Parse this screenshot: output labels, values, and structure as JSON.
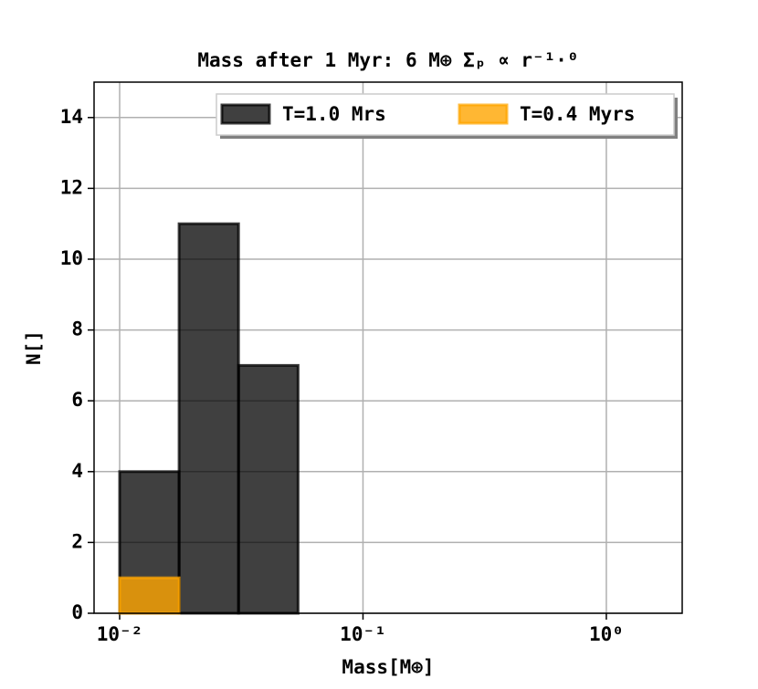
{
  "chart_data": {
    "type": "histogram",
    "title": "Mass after 1 Myr: 6 M⊕ Σₚ ∝ r⁻¹·⁰",
    "xlabel": "Mass[M⊕]",
    "ylabel": "N[]",
    "bins": [
      0.01,
      0.01755,
      0.0308,
      0.0541,
      0.0949,
      0.1666,
      0.2924,
      0.5131,
      0.9005,
      1.58
    ],
    "series": [
      {
        "name": "T=1.0 Mrs",
        "color": "#000000",
        "values": [
          4,
          11,
          7,
          0,
          0,
          0,
          0,
          0,
          0
        ]
      },
      {
        "name": "T=0.4 Myrs",
        "color": "#ffa500",
        "values": [
          1,
          0,
          0,
          0,
          0,
          0,
          0,
          0,
          0
        ]
      }
    ],
    "xscale": "log",
    "xlim": [
      0.00785,
      2.05
    ],
    "xticks": [
      {
        "value": 0.01,
        "label": "10⁻²"
      },
      {
        "value": 0.1,
        "label": "10⁻¹"
      },
      {
        "value": 1,
        "label": "10⁰"
      }
    ],
    "ylim": [
      0,
      15
    ],
    "yticks": [
      0,
      2,
      4,
      6,
      8,
      10,
      12,
      14
    ],
    "grid": true,
    "legend": "upper right"
  }
}
